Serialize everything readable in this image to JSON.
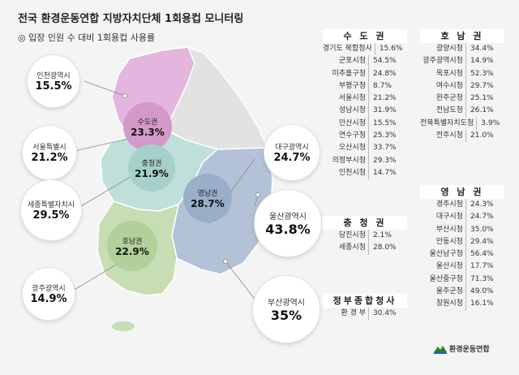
{
  "title": "전국 환경운동연합 지방자치단체 1회용컵 모니터링",
  "subtitle": "◎ 입장 인원 수 대비 1회용컵 사용률",
  "colors": {
    "sudo": "#e3b6dd",
    "chungcheong": "#bfe0da",
    "honam": "#c7ddb3",
    "yeongnam": "#b3c2d6",
    "gangwon": "#e2e2e2",
    "line": "#888888"
  },
  "regions": {
    "sudo": {
      "name": "수도권",
      "value": "23.3%"
    },
    "chungcheong": {
      "name": "충청권",
      "value": "21.9%"
    },
    "yeongnam": {
      "name": "영남권",
      "value": "28.7%"
    },
    "honam": {
      "name": "호남권",
      "value": "22.9%"
    }
  },
  "cities": {
    "incheon": {
      "name": "인천광역시",
      "value": "15.5%"
    },
    "seoul": {
      "name": "서울특별시",
      "value": "21.2%"
    },
    "sejong": {
      "name": "세종특별자치시",
      "value": "29.5%"
    },
    "gwangju": {
      "name": "광주광역시",
      "value": "14.9%"
    },
    "daegu": {
      "name": "대구광역시",
      "value": "24.7%"
    },
    "ulsan": {
      "name": "울산광역시",
      "value": "43.8%"
    },
    "busan": {
      "name": "부산광역시",
      "value": "35%"
    }
  },
  "tables": {
    "sudo": {
      "header": "수 도 권",
      "rows": [
        {
          "k": "경기도 북합청사",
          "v": "15.6%"
        },
        {
          "k": "군포시청",
          "v": "54.5%"
        },
        {
          "k": "미추홀구청",
          "v": "24.8%"
        },
        {
          "k": "부평구청",
          "v": "8.7%"
        },
        {
          "k": "서울시청",
          "v": "21.2%"
        },
        {
          "k": "성남시청",
          "v": "31.9%"
        },
        {
          "k": "안산시청",
          "v": "15.5%"
        },
        {
          "k": "연수구청",
          "v": "25.3%"
        },
        {
          "k": "오산시청",
          "v": "33.7%"
        },
        {
          "k": "의정부시청",
          "v": "29.3%"
        },
        {
          "k": "인천시청",
          "v": "14.7%"
        }
      ]
    },
    "chungcheong": {
      "header": "충 청 권",
      "rows": [
        {
          "k": "당진시청",
          "v": "2.1%"
        },
        {
          "k": "세종시청",
          "v": "28.0%"
        }
      ]
    },
    "gov": {
      "header": "정부종합청사",
      "rows": [
        {
          "k": "환 경 부",
          "v": "30.4%"
        }
      ]
    },
    "honam": {
      "header": "호 남 권",
      "rows": [
        {
          "k": "광양시청",
          "v": "34.4%"
        },
        {
          "k": "광주광역시청",
          "v": "14.9%"
        },
        {
          "k": "목포시청",
          "v": "52.3%"
        },
        {
          "k": "여수시청",
          "v": "29.7%"
        },
        {
          "k": "완주군청",
          "v": "25.1%"
        },
        {
          "k": "전남도청",
          "v": "26.1%"
        },
        {
          "k": "전북특별자치도청",
          "v": "3.9%"
        },
        {
          "k": "전주시청",
          "v": "21.0%"
        }
      ]
    },
    "yeongnam": {
      "header": "영 남 권",
      "rows": [
        {
          "k": "경주시청",
          "v": "24.3%"
        },
        {
          "k": "대구시청",
          "v": "24.7%"
        },
        {
          "k": "부산시청",
          "v": "35.0%"
        },
        {
          "k": "안동시청",
          "v": "29.4%"
        },
        {
          "k": "울산남구청",
          "v": "56.4%"
        },
        {
          "k": "울산시청",
          "v": "17.7%"
        },
        {
          "k": "울산중구청",
          "v": "71.3%"
        },
        {
          "k": "울주군청",
          "v": "49.0%"
        },
        {
          "k": "창원시청",
          "v": "16.1%"
        }
      ]
    }
  },
  "logo": {
    "text": "환경운동연합"
  }
}
